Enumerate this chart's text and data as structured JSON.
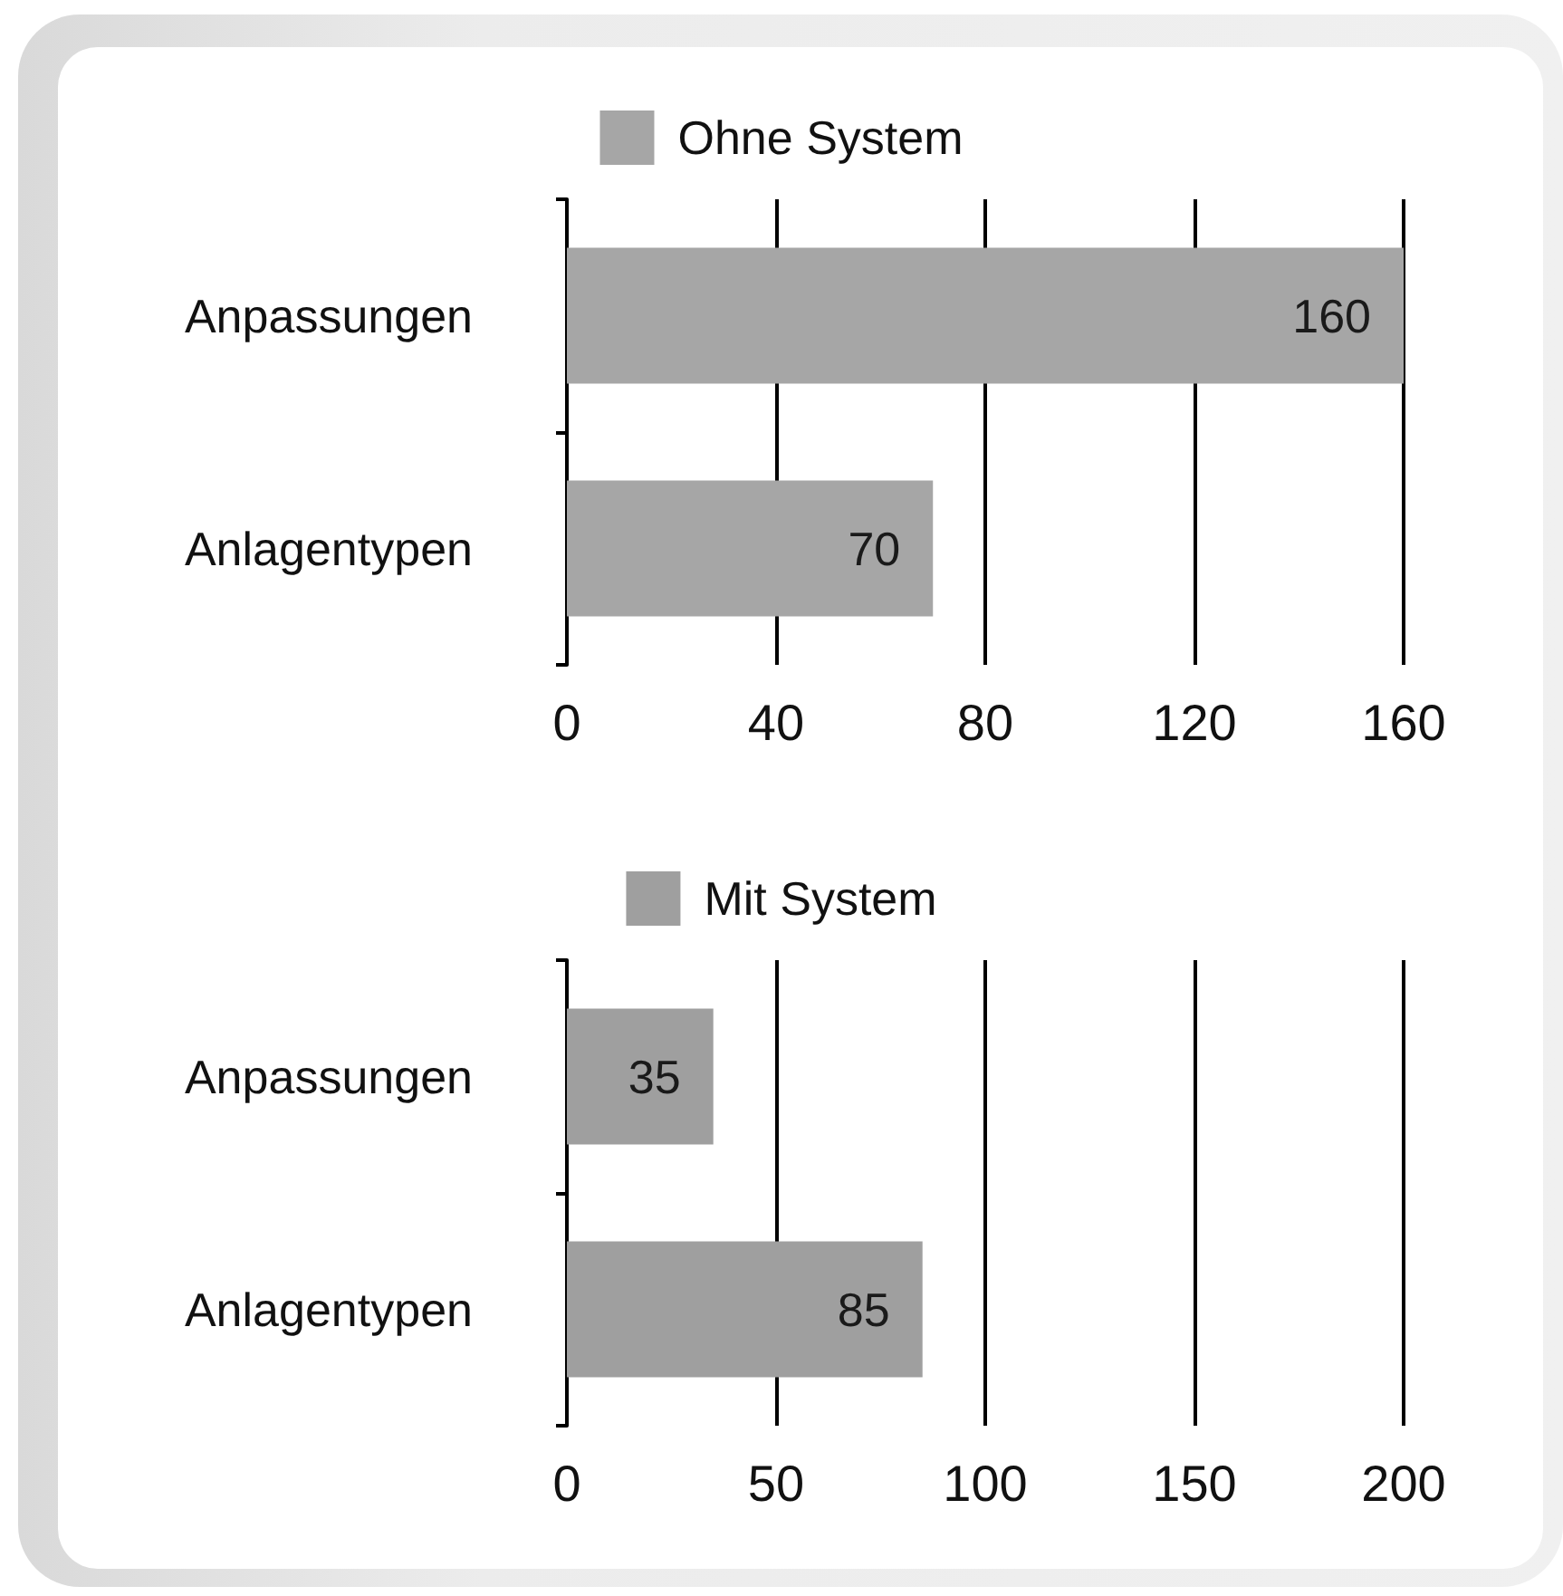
{
  "chart_data": [
    {
      "type": "bar",
      "orientation": "horizontal",
      "categories": [
        "Anpassungen",
        "Anlagentypen"
      ],
      "series": [
        {
          "name": "Ohne System",
          "color": "#a6a6a6",
          "values": [
            160,
            70
          ]
        }
      ],
      "xlim": [
        0,
        160
      ],
      "xticks": [
        0,
        40,
        80,
        120,
        160
      ],
      "grid": "x",
      "legend": "top",
      "data_labels": true
    },
    {
      "type": "bar",
      "orientation": "horizontal",
      "categories": [
        "Anpassungen",
        "Anlagentypen"
      ],
      "series": [
        {
          "name": "Mit System",
          "color": "#9f9f9f",
          "values": [
            35,
            85
          ]
        }
      ],
      "xlim": [
        0,
        200
      ],
      "xticks": [
        0,
        50,
        100,
        150,
        200
      ],
      "grid": "x",
      "legend": "top",
      "data_labels": true
    }
  ]
}
